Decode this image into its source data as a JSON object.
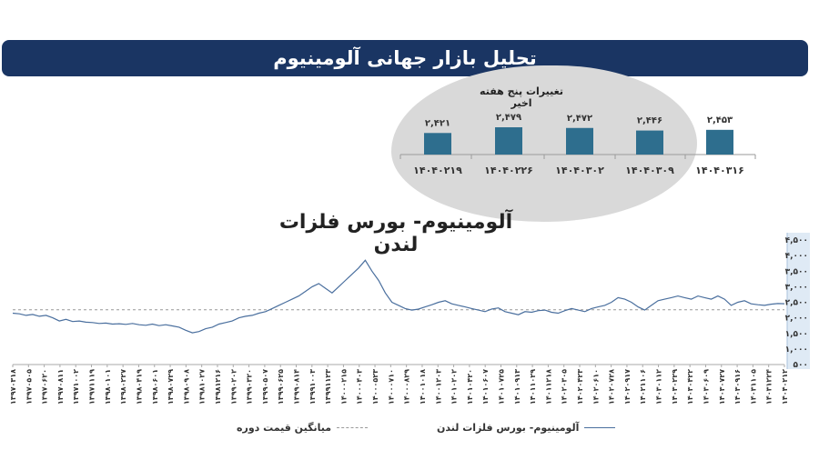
{
  "header": {
    "title": "تحلیل بازار جهانی آلومینیوم"
  },
  "weekly": {
    "label": "تغییرات پنج هفته اخیر",
    "color": "#2e6e8e",
    "items": [
      {
        "date": "۱۴۰۴۰۲۱۹",
        "value": 2421,
        "value_label": "۲,۴۲۱"
      },
      {
        "date": "۱۴۰۴۰۲۲۶",
        "value": 2479,
        "value_label": "۲,۴۷۹"
      },
      {
        "date": "۱۴۰۴۰۳۰۲",
        "value": 2472,
        "value_label": "۲,۴۷۲"
      },
      {
        "date": "۱۴۰۴۰۳۰۹",
        "value": 2446,
        "value_label": "۲,۴۴۶"
      },
      {
        "date": "۱۴۰۴۰۳۱۶",
        "value": 2453,
        "value_label": "۲,۴۵۳"
      }
    ]
  },
  "chart_data": {
    "type": "line",
    "title": "آلومینیوم- بورس فلزات لندن",
    "ylim": [
      500,
      4500
    ],
    "yticks": [
      "۴,۵۰۰",
      "۴,۰۰۰",
      "۳,۵۰۰",
      "۳,۰۰۰",
      "۲,۵۰۰",
      "۲,۰۰۰",
      "۱,۵۰۰",
      "۱,۰۰۰",
      "۵۰۰"
    ],
    "ytick_values": [
      4500,
      4000,
      3500,
      3000,
      2500,
      2000,
      1500,
      1000,
      500
    ],
    "xtick_labels": [
      "۱۳۹۷۰۳۱۸",
      "۱۳۹۷۰۵۰۵",
      "۱۳۹۷۰۶۲۰",
      "۱۳۹۷۰۸۱۱",
      "۱۳۹۷۱۰۰۲",
      "۱۳۹۷۱۱۱۹",
      "۱۳۹۸۰۱۰۱",
      "۱۳۹۸۰۲۲۷",
      "۱۳۹۸۰۴۱۹",
      "۱۳۹۸۰۶۰۱",
      "۱۳۹۸۰۷۲۹",
      "۱۳۹۸۰۹۰۸",
      "۱۳۹۸۱۰۲۷",
      "۱۳۹۸۱۲۱۶",
      "۱۳۹۹۰۲۰۲",
      "۱۳۹۹۰۳۲۰",
      "۱۳۹۹۰۵۰۷",
      "۱۳۹۹۰۶۲۵",
      "۱۳۹۹۰۸۱۴",
      "۱۳۹۹۱۰۰۳",
      "۱۳۹۹۱۱۲۳",
      "۱۴۰۰۰۲۱۵",
      "۱۴۰۰۰۴۰۳",
      "۱۴۰۰۰۵۲۳",
      "۱۴۰۰۰۷۱۰",
      "۱۴۰۰۰۸۲۹",
      "۱۴۰۰۱۰۱۸",
      "۱۴۰۰۱۲۰۳",
      "۱۴۰۱۰۲۰۲",
      "۱۴۰۱۰۴۲۰",
      "۱۴۰۱۰۶۰۷",
      "۱۴۰۱۰۷۲۵",
      "۱۴۰۱۰۹۱۳",
      "۱۴۰۱۱۰۲۹",
      "۱۴۰۱۱۲۱۸",
      "۱۴۰۲۰۳۰۵",
      "۱۴۰۲۰۴۲۳",
      "۱۴۰۲۰۶۱۰",
      "۱۴۰۲۰۷۲۸",
      "۱۴۰۲۰۹۱۷",
      "۱۴۰۲۱۱۰۶",
      "۱۴۰۳۰۱۱۲",
      "۱۴۰۳۰۲۲۹",
      "۱۴۰۳۰۴۲۲",
      "۱۴۰۳۰۶۰۹",
      "۱۴۰۳۰۷۲۷",
      "۱۴۰۳۰۹۱۶",
      "۱۴۰۳۱۱۰۵",
      "۱۴۰۳۱۲۲۴",
      "۱۴۰۴۰۲۱۲"
    ],
    "series": [
      {
        "name": "آلومینیوم- بورس فلزات لندن",
        "color": "#4a6f9e",
        "values": [
          2150,
          2130,
          2080,
          2110,
          2050,
          2080,
          2000,
          1900,
          1950,
          1880,
          1900,
          1860,
          1850,
          1820,
          1830,
          1800,
          1810,
          1790,
          1820,
          1780,
          1760,
          1800,
          1750,
          1780,
          1740,
          1700,
          1600,
          1520,
          1560,
          1650,
          1700,
          1800,
          1850,
          1900,
          2000,
          2050,
          2080,
          2150,
          2200,
          2300,
          2400,
          2500,
          2600,
          2700,
          2850,
          3000,
          3100,
          2950,
          2800,
          3000,
          3200,
          3400,
          3600,
          3850,
          3500,
          3200,
          2800,
          2500,
          2400,
          2300,
          2250,
          2280,
          2350,
          2420,
          2500,
          2550,
          2450,
          2400,
          2350,
          2300,
          2250,
          2200,
          2280,
          2320,
          2200,
          2150,
          2100,
          2200,
          2180,
          2230,
          2250,
          2180,
          2150,
          2230,
          2300,
          2250,
          2200,
          2300,
          2350,
          2400,
          2500,
          2650,
          2600,
          2500,
          2350,
          2250,
          2400,
          2550,
          2600,
          2650,
          2700,
          2650,
          2600,
          2700,
          2650,
          2600,
          2700,
          2600,
          2400,
          2500,
          2550,
          2450,
          2420,
          2400,
          2440,
          2460,
          2453
        ]
      }
    ],
    "average": {
      "name": "میانگین قیمت دوره",
      "value": 2260,
      "color": "#999999"
    }
  }
}
